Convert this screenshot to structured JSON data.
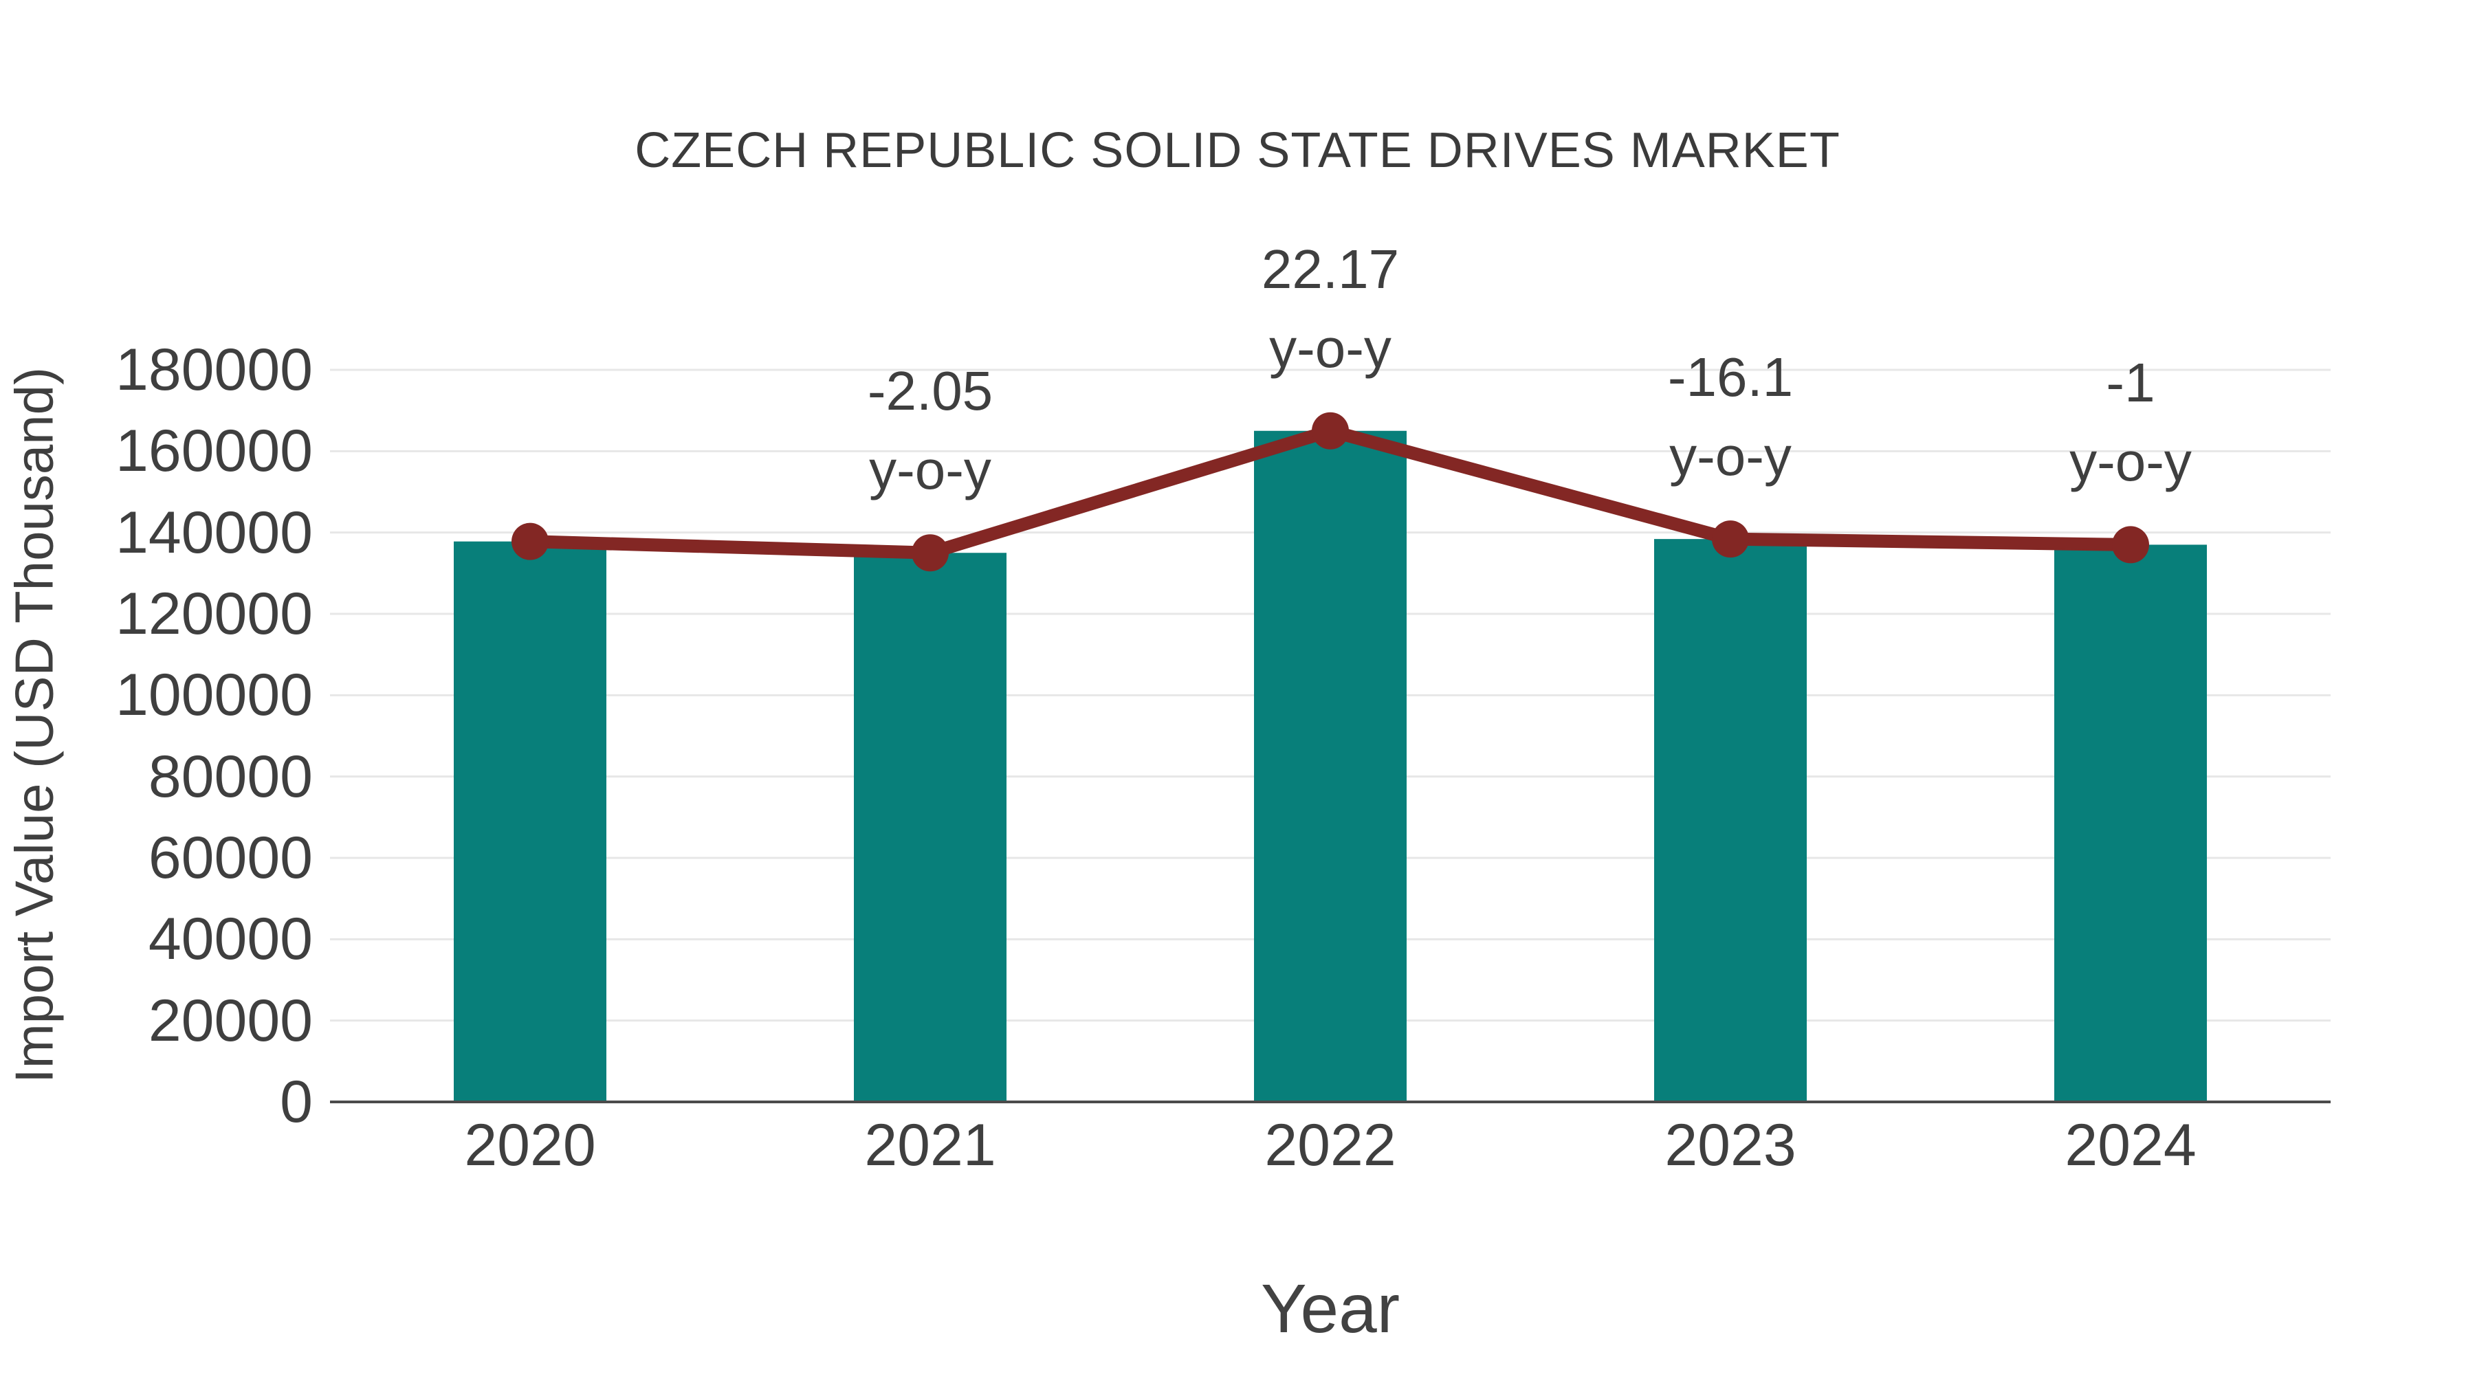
{
  "title": "CZECH REPUBLIC SOLID STATE DRIVES MARKET",
  "chart_data": {
    "type": "bar",
    "title": "CZECH REPUBLIC SOLID STATE DRIVES MARKET",
    "xlabel": "Year",
    "ylabel": "Import Value (USD Thousand)",
    "categories": [
      "2020",
      "2021",
      "2022",
      "2023",
      "2024"
    ],
    "series": [
      {
        "name": "Import Value (bars)",
        "type": "bar",
        "values": [
          137800,
          135000,
          165000,
          138400,
          137000
        ]
      },
      {
        "name": "Import Value (line with markers)",
        "type": "line",
        "values": [
          137800,
          135000,
          165000,
          138400,
          137000
        ]
      }
    ],
    "annotations": [
      {
        "category": "2021",
        "line1": "-2.05",
        "line2": "y-o-y"
      },
      {
        "category": "2022",
        "line1": "22.17",
        "line2": "y-o-y"
      },
      {
        "category": "2023",
        "line1": "-16.1",
        "line2": "y-o-y"
      },
      {
        "category": "2024",
        "line1": "-1",
        "line2": "y-o-y"
      }
    ],
    "ylim": [
      0,
      180000
    ],
    "ytick_step": 20000,
    "yticks": [
      0,
      20000,
      40000,
      60000,
      80000,
      100000,
      120000,
      140000,
      160000,
      180000
    ],
    "grid": "horizontal",
    "legend_position": "none"
  },
  "colors": {
    "bar": "#087F7A",
    "line": "#832724",
    "marker": "#832724",
    "gridline": "#e7e7e7",
    "axis_line": "#4b4b4b",
    "tick_text": "#3f3f3f",
    "title_text": "#3b3b3b",
    "background": "#ffffff"
  }
}
